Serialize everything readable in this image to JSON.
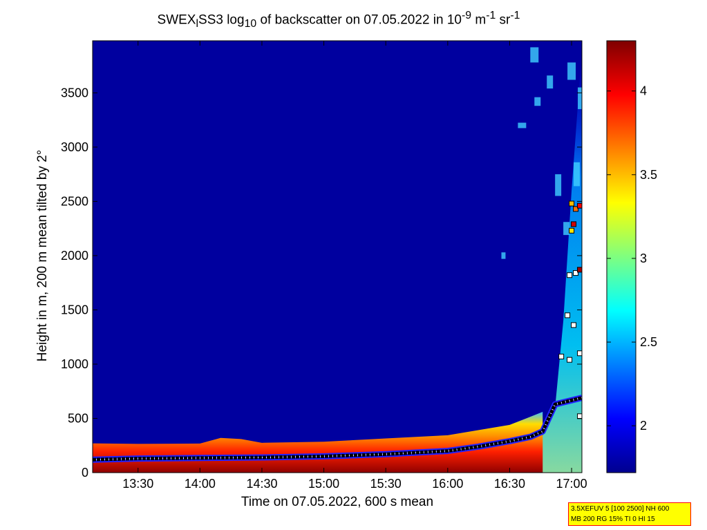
{
  "chart_data": {
    "type": "heatmap",
    "title_parts": {
      "a": "SWEX",
      "sub1": "l",
      "b": "SS3 log",
      "sub2": "10",
      "c": " of backscatter on 07.05.2022 in 10",
      "sup1": "-9",
      "d": " m",
      "sup2": "-1",
      "e": " sr",
      "sup3": "-1"
    },
    "xlabel": "Time on 07.05.2022, 600 s mean",
    "ylabel": "Height in m, 200 m mean tilted by 2°",
    "x_ticks": [
      "13:30",
      "14:00",
      "14:30",
      "15:00",
      "15:30",
      "16:00",
      "16:30",
      "17:00"
    ],
    "x_tick_minutes": [
      810,
      840,
      870,
      900,
      930,
      960,
      990,
      1020
    ],
    "xlim_minutes": [
      788,
      1025
    ],
    "y_ticks": [
      "0",
      "500",
      "1000",
      "1500",
      "2000",
      "2500",
      "3000",
      "3500"
    ],
    "y_tick_values": [
      0,
      500,
      1000,
      1500,
      2000,
      2500,
      3000,
      3500
    ],
    "ylim": [
      0,
      3980
    ],
    "colorbar": {
      "ticks": [
        "2",
        "2.5",
        "3",
        "3.5",
        "4"
      ],
      "tick_values": [
        2,
        2.5,
        3,
        3.5,
        4
      ],
      "range": [
        1.72,
        4.3
      ],
      "colormap": "jet"
    },
    "background_value": 1.8,
    "surface_layer_top": [
      {
        "t": 788,
        "h": 270
      },
      {
        "t": 810,
        "h": 265
      },
      {
        "t": 840,
        "h": 268
      },
      {
        "t": 850,
        "h": 320
      },
      {
        "t": 860,
        "h": 310
      },
      {
        "t": 870,
        "h": 275
      },
      {
        "t": 900,
        "h": 285
      },
      {
        "t": 930,
        "h": 315
      },
      {
        "t": 960,
        "h": 345
      },
      {
        "t": 990,
        "h": 440
      },
      {
        "t": 1006,
        "h": 560
      }
    ],
    "mixing_layer_height": [
      {
        "t": 788,
        "h": 120
      },
      {
        "t": 810,
        "h": 130
      },
      {
        "t": 840,
        "h": 135
      },
      {
        "t": 870,
        "h": 140
      },
      {
        "t": 900,
        "h": 150
      },
      {
        "t": 930,
        "h": 170
      },
      {
        "t": 960,
        "h": 200
      },
      {
        "t": 975,
        "h": 240
      },
      {
        "t": 990,
        "h": 290
      },
      {
        "t": 1000,
        "h": 330
      },
      {
        "t": 1006,
        "h": 380
      },
      {
        "t": 1012,
        "h": 630
      },
      {
        "t": 1025,
        "h": 690
      }
    ],
    "cloud_markers": [
      {
        "t": 1020,
        "h": 2480,
        "v": 3.5
      },
      {
        "t": 1022,
        "h": 2430,
        "v": 3.7
      },
      {
        "t": 1024,
        "h": 2460,
        "v": 4.0
      },
      {
        "t": 1021,
        "h": 2290,
        "v": 4.1
      },
      {
        "t": 1020,
        "h": 2230,
        "v": 3.4
      },
      {
        "t": 1019,
        "h": 1820,
        "v": 2.0
      },
      {
        "t": 1022,
        "h": 1840,
        "v": 2.0
      },
      {
        "t": 1024,
        "h": 1870,
        "v": 4.2
      },
      {
        "t": 1021,
        "h": 1360,
        "v": 2.0
      },
      {
        "t": 1018,
        "h": 1450,
        "v": 2.0
      },
      {
        "t": 1015,
        "h": 1070,
        "v": 2.0
      },
      {
        "t": 1019,
        "h": 1040,
        "v": 2.0
      },
      {
        "t": 1024,
        "h": 1100,
        "v": 2.0
      },
      {
        "t": 1024,
        "h": 520,
        "v": 2.0
      }
    ],
    "info_lines": [
      "3.5XEFUV 5 [100 2500] NH 600",
      "MB 200 RG 15% TI 0 HI 15"
    ]
  }
}
